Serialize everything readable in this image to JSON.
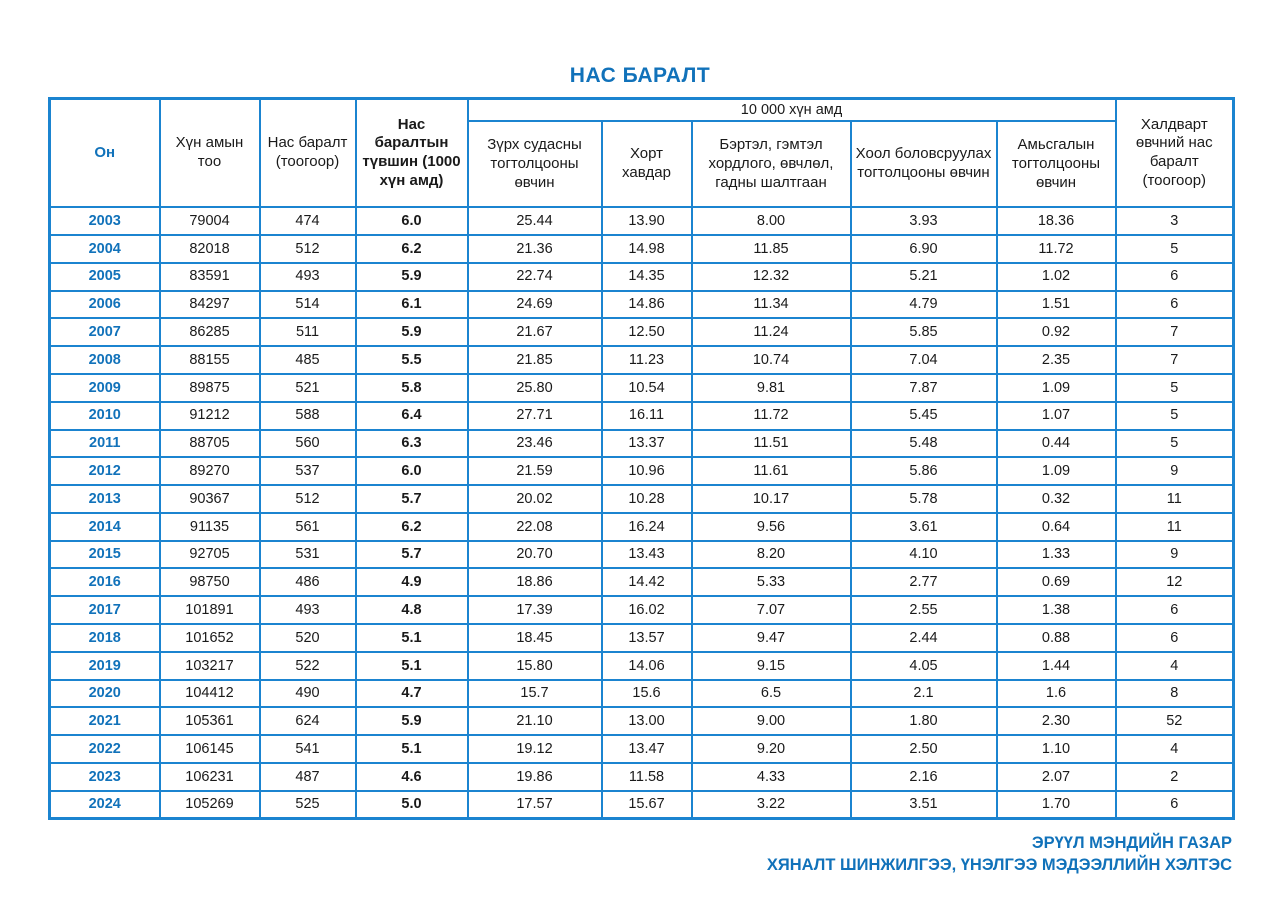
{
  "title": "НАС БАРАЛТ",
  "colors": {
    "accent_blue": "#1172ba",
    "border_blue": "#1b84d0",
    "text_black": "#1a1a1a",
    "background": "#ffffff"
  },
  "table": {
    "group_header": "10 000 хүн амд",
    "columns": [
      {
        "key": "year",
        "label": "Он"
      },
      {
        "key": "population",
        "label": "Хүн амын тоо"
      },
      {
        "key": "deaths",
        "label": "Нас баралт (тоогоор)"
      },
      {
        "key": "rate",
        "label": "Нас баралтын түвшин (1000 хүн амд)"
      },
      {
        "key": "cardio",
        "label": "Зүрх судасны тогтолцооны өвчин"
      },
      {
        "key": "cancer",
        "label": "Хорт хавдар"
      },
      {
        "key": "injury",
        "label": "Бэртэл, гэмтэл хордлого, өвчлөл, гадны шалтгаан"
      },
      {
        "key": "digestive",
        "label": "Хоол боловсруулах тогтолцооны өвчин"
      },
      {
        "key": "respiratory",
        "label": "Амьсгалын тогтолцооны өвчин"
      },
      {
        "key": "infectious",
        "label": "Халдварт өвчний нас баралт (тоогоор)"
      }
    ],
    "rows": [
      [
        "2003",
        "79004",
        "474",
        "6.0",
        "25.44",
        "13.90",
        "8.00",
        "3.93",
        "18.36",
        "3"
      ],
      [
        "2004",
        "82018",
        "512",
        "6.2",
        "21.36",
        "14.98",
        "11.85",
        "6.90",
        "11.72",
        "5"
      ],
      [
        "2005",
        "83591",
        "493",
        "5.9",
        "22.74",
        "14.35",
        "12.32",
        "5.21",
        "1.02",
        "6"
      ],
      [
        "2006",
        "84297",
        "514",
        "6.1",
        "24.69",
        "14.86",
        "11.34",
        "4.79",
        "1.51",
        "6"
      ],
      [
        "2007",
        "86285",
        "511",
        "5.9",
        "21.67",
        "12.50",
        "11.24",
        "5.85",
        "0.92",
        "7"
      ],
      [
        "2008",
        "88155",
        "485",
        "5.5",
        "21.85",
        "11.23",
        "10.74",
        "7.04",
        "2.35",
        "7"
      ],
      [
        "2009",
        "89875",
        "521",
        "5.8",
        "25.80",
        "10.54",
        "9.81",
        "7.87",
        "1.09",
        "5"
      ],
      [
        "2010",
        "91212",
        "588",
        "6.4",
        "27.71",
        "16.11",
        "11.72",
        "5.45",
        "1.07",
        "5"
      ],
      [
        "2011",
        "88705",
        "560",
        "6.3",
        "23.46",
        "13.37",
        "11.51",
        "5.48",
        "0.44",
        "5"
      ],
      [
        "2012",
        "89270",
        "537",
        "6.0",
        "21.59",
        "10.96",
        "11.61",
        "5.86",
        "1.09",
        "9"
      ],
      [
        "2013",
        "90367",
        "512",
        "5.7",
        "20.02",
        "10.28",
        "10.17",
        "5.78",
        "0.32",
        "11"
      ],
      [
        "2014",
        "91135",
        "561",
        "6.2",
        "22.08",
        "16.24",
        "9.56",
        "3.61",
        "0.64",
        "11"
      ],
      [
        "2015",
        "92705",
        "531",
        "5.7",
        "20.70",
        "13.43",
        "8.20",
        "4.10",
        "1.33",
        "9"
      ],
      [
        "2016",
        "98750",
        "486",
        "4.9",
        "18.86",
        "14.42",
        "5.33",
        "2.77",
        "0.69",
        "12"
      ],
      [
        "2017",
        "101891",
        "493",
        "4.8",
        "17.39",
        "16.02",
        "7.07",
        "2.55",
        "1.38",
        "6"
      ],
      [
        "2018",
        "101652",
        "520",
        "5.1",
        "18.45",
        "13.57",
        "9.47",
        "2.44",
        "0.88",
        "6"
      ],
      [
        "2019",
        "103217",
        "522",
        "5.1",
        "15.80",
        "14.06",
        "9.15",
        "4.05",
        "1.44",
        "4"
      ],
      [
        "2020",
        "104412",
        "490",
        "4.7",
        "15.7",
        "15.6",
        "6.5",
        "2.1",
        "1.6",
        "8"
      ],
      [
        "2021",
        "105361",
        "624",
        "5.9",
        "21.10",
        "13.00",
        "9.00",
        "1.80",
        "2.30",
        "52"
      ],
      [
        "2022",
        "106145",
        "541",
        "5.1",
        "19.12",
        "13.47",
        "9.20",
        "2.50",
        "1.10",
        "4"
      ],
      [
        "2023",
        "106231",
        "487",
        "4.6",
        "19.86",
        "11.58",
        "4.33",
        "2.16",
        "2.07",
        "2"
      ],
      [
        "2024",
        "105269",
        "525",
        "5.0",
        "17.57",
        "15.67",
        "3.22",
        "3.51",
        "1.70",
        "6"
      ]
    ]
  },
  "footer": {
    "line1": "ЭРҮҮЛ МЭНДИЙН ГАЗАР",
    "line2": "ХЯНАЛТ ШИНЖИЛГЭЭ, ҮНЭЛГЭЭ МЭДЭЭЛЛИЙН ХЭЛТЭС"
  }
}
